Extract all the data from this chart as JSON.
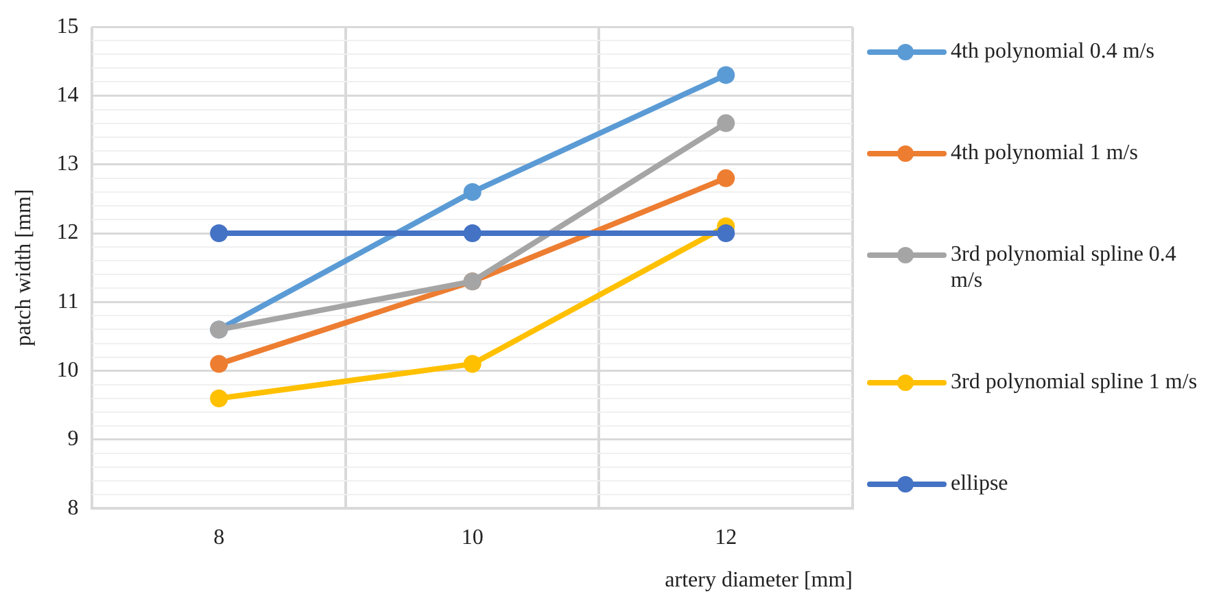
{
  "chart_data": {
    "type": "line",
    "xlabel": "artery diameter [mm]",
    "ylabel": "patch width [mm]",
    "categories": [
      "8",
      "10",
      "12"
    ],
    "series": [
      {
        "name": "4th polynomial 0.4 m/s",
        "color": "#5b9bd5",
        "values": [
          10.6,
          12.6,
          14.3
        ]
      },
      {
        "name": "4th polynomial 1 m/s",
        "color": "#ed7d31",
        "values": [
          10.1,
          11.3,
          12.8
        ]
      },
      {
        "name": "3rd polynomial spline 0.4 m/s",
        "color": "#a5a5a5",
        "values": [
          10.6,
          11.3,
          13.6
        ]
      },
      {
        "name": "3rd polynomial spline 1 m/s",
        "color": "#ffc000",
        "values": [
          9.6,
          10.1,
          12.1
        ]
      },
      {
        "name": "ellipse",
        "color": "#4472c4",
        "values": [
          12,
          12,
          12
        ]
      }
    ],
    "ylim": [
      8,
      15
    ],
    "yticks": [
      8,
      {
        "value": 8.2,
        "label": null
      },
      {
        "value": 8.4,
        "label": null
      },
      {
        "value": 8.6,
        "label": null
      },
      {
        "value": 8.8,
        "label": null
      },
      9,
      {
        "value": 9.2,
        "label": null
      },
      {
        "value": 9.4,
        "label": null
      },
      {
        "value": 9.6,
        "label": null
      },
      {
        "value": 9.8,
        "label": null
      },
      10,
      {
        "value": 10.2,
        "label": null
      },
      {
        "value": 10.4,
        "label": null
      },
      {
        "value": 10.6,
        "label": null
      },
      {
        "value": 10.8,
        "label": null
      },
      11,
      {
        "value": 11.2,
        "label": null
      },
      {
        "value": 11.4,
        "label": null
      },
      {
        "value": 11.6,
        "label": null
      },
      {
        "value": 11.8,
        "label": null
      },
      12,
      {
        "value": 12.2,
        "label": null
      },
      {
        "value": 12.4,
        "label": null
      },
      {
        "value": 12.6,
        "label": null
      },
      {
        "value": 12.8,
        "label": null
      },
      13,
      {
        "value": 13.2,
        "label": null
      },
      {
        "value": 13.4,
        "label": null
      },
      {
        "value": 13.6,
        "label": null
      },
      {
        "value": 13.8,
        "label": null
      },
      14,
      {
        "value": 14.2,
        "label": null
      },
      {
        "value": 14.4,
        "label": null
      },
      {
        "value": 14.6,
        "label": null
      },
      {
        "value": 14.8,
        "label": null
      },
      15
    ],
    "grid": true,
    "legend": "right",
    "marker": "circle",
    "line_style": "solid"
  }
}
